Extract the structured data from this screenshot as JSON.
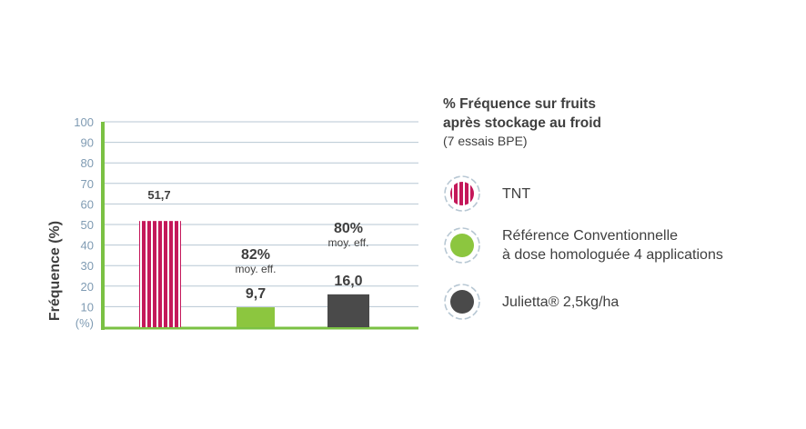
{
  "chart_data": {
    "type": "bar",
    "ylabel": "Fréquence (%)",
    "yunit": "(%)",
    "ylim": [
      0,
      100
    ],
    "yticks": [
      "10",
      "20",
      "30",
      "40",
      "50",
      "60",
      "70",
      "80",
      "90",
      "100"
    ],
    "grid": true,
    "categories": [
      "TNT",
      "Référence Conventionnelle à dose homologuée 4 applications",
      "Julietta® 2,5kg/ha"
    ],
    "values": [
      51.7,
      9.7,
      16.0
    ],
    "value_labels": [
      "51,7",
      "9,7",
      "16,0"
    ],
    "efficacy": [
      null,
      {
        "pct": "82%",
        "label": "moy. eff."
      },
      {
        "pct": "80%",
        "label": "moy. eff."
      }
    ],
    "colors": [
      "#c4185a",
      "#8cc63f",
      "#4a4a4a"
    ],
    "axis_color": "#7ac143",
    "grid_color": "#b7c7d3"
  },
  "legend": {
    "title_line1": "% Fréquence sur fruits",
    "title_line2": "après stockage au froid",
    "subtitle": "(7 essais BPE)",
    "items": [
      {
        "line1": "TNT",
        "line2": "",
        "icon": "striped-circle-icon",
        "color": "#c4185a"
      },
      {
        "line1": "Référence Conventionnelle",
        "line2": "à dose homologuée 4 applications",
        "icon": "green-circle-icon",
        "color": "#8cc63f"
      },
      {
        "line1": "Julietta® 2,5kg/ha",
        "line2": "",
        "icon": "dark-circle-icon",
        "color": "#4a4a4a"
      }
    ]
  }
}
